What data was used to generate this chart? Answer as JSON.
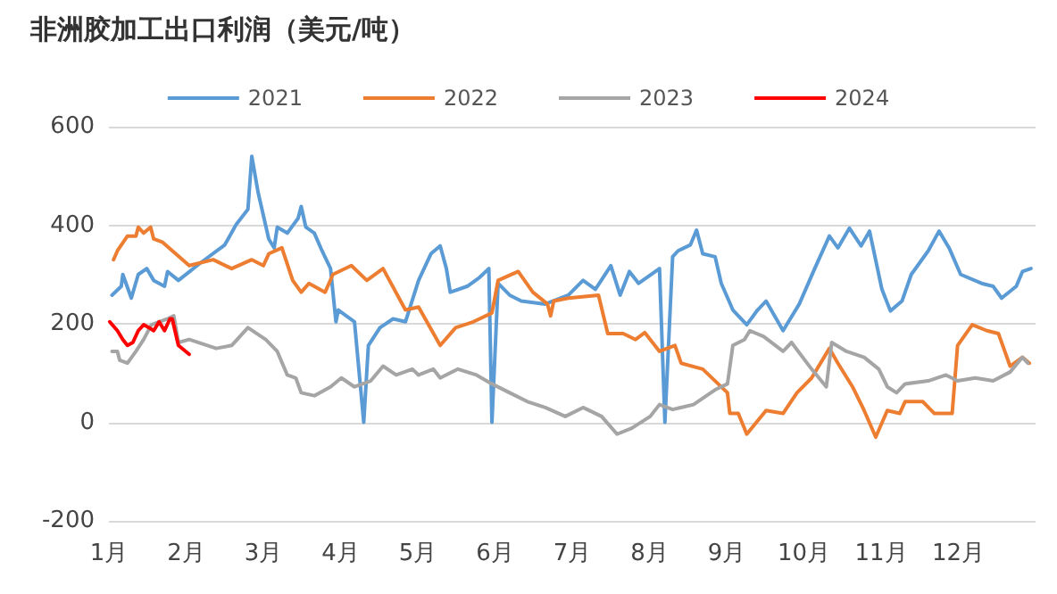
{
  "chart_data": {
    "type": "line",
    "title": "非洲胶加工出口利润（美元/吨）",
    "xlim": [
      1,
      13
    ],
    "xticks": [
      {
        "value": 1,
        "label": "1月"
      },
      {
        "value": 2,
        "label": "2月"
      },
      {
        "value": 3,
        "label": "3月"
      },
      {
        "value": 4,
        "label": "4月"
      },
      {
        "value": 5,
        "label": "5月"
      },
      {
        "value": 6,
        "label": "6月"
      },
      {
        "value": 7,
        "label": "7月"
      },
      {
        "value": 8,
        "label": "8月"
      },
      {
        "value": 9,
        "label": "9月"
      },
      {
        "value": 10,
        "label": "10月"
      },
      {
        "value": 11,
        "label": "11月"
      },
      {
        "value": 12,
        "label": "12月"
      }
    ],
    "ylim": [
      -200,
      600
    ],
    "yticks": [
      -200,
      0,
      200,
      400,
      600
    ],
    "grid": "y",
    "legend": "top",
    "marker": "none",
    "line_style": "solid",
    "series": [
      {
        "name": "2021",
        "color": "#5b9bd5",
        "x": [
          1.04,
          1.16,
          1.18,
          1.29,
          1.38,
          1.49,
          1.58,
          1.72,
          1.76,
          1.9,
          2.19,
          2.5,
          2.65,
          2.8,
          2.85,
          2.93,
          3.07,
          3.14,
          3.18,
          3.31,
          3.45,
          3.49,
          3.55,
          3.66,
          3.76,
          3.87,
          3.94,
          3.97,
          4.18,
          4.3,
          4.36,
          4.51,
          4.68,
          4.84,
          5.01,
          5.17,
          5.29,
          5.37,
          5.42,
          5.64,
          5.8,
          5.92,
          5.96,
          6.04,
          6.19,
          6.34,
          6.65,
          6.95,
          7.14,
          7.3,
          7.5,
          7.62,
          7.74,
          7.86,
          8.13,
          8.2,
          8.3,
          8.37,
          8.53,
          8.61,
          8.69,
          8.85,
          8.93,
          9.08,
          9.26,
          9.4,
          9.51,
          9.73,
          9.94,
          10.14,
          10.33,
          10.44,
          10.59,
          10.74,
          10.85,
          11.01,
          11.12,
          11.27,
          11.39,
          11.61,
          11.75,
          11.88,
          12.03,
          12.3,
          12.45,
          12.56,
          12.75,
          12.83,
          12.94
        ],
        "values": [
          258,
          276,
          300,
          252,
          300,
          312,
          288,
          276,
          306,
          288,
          324,
          360,
          402,
          432,
          540,
          468,
          372,
          354,
          396,
          384,
          414,
          438,
          396,
          384,
          348,
          312,
          204,
          228,
          204,
          0,
          156,
          192,
          210,
          204,
          288,
          342,
          358,
          312,
          264,
          276,
          294,
          312,
          0,
          282,
          258,
          246,
          240,
          258,
          288,
          270,
          318,
          258,
          306,
          282,
          312,
          0,
          336,
          348,
          360,
          390,
          342,
          336,
          282,
          228,
          198,
          228,
          246,
          186,
          240,
          312,
          378,
          354,
          394,
          358,
          388,
          270,
          226,
          246,
          300,
          348,
          388,
          354,
          300,
          282,
          276,
          252,
          276,
          306,
          312
        ]
      },
      {
        "name": "2022",
        "color": "#ed7d31",
        "x": [
          1.06,
          1.11,
          1.24,
          1.35,
          1.38,
          1.45,
          1.54,
          1.58,
          1.69,
          2.04,
          2.35,
          2.59,
          2.85,
          3.0,
          3.07,
          3.24,
          3.38,
          3.49,
          3.59,
          3.8,
          3.9,
          4.14,
          4.34,
          4.55,
          4.84,
          5.01,
          5.29,
          5.49,
          5.72,
          5.96,
          6.04,
          6.3,
          6.49,
          6.68,
          6.72,
          6.76,
          6.95,
          7.34,
          7.46,
          7.66,
          7.82,
          7.94,
          8.13,
          8.33,
          8.41,
          8.69,
          8.85,
          9.01,
          9.04,
          9.15,
          9.26,
          9.51,
          9.73,
          9.91,
          10.1,
          10.33,
          10.44,
          10.63,
          10.78,
          10.93,
          11.08,
          11.24,
          11.31,
          11.54,
          11.69,
          11.92,
          11.99,
          12.18,
          12.37,
          12.52,
          12.67,
          12.83,
          12.92
        ],
        "values": [
          330,
          348,
          378,
          378,
          396,
          384,
          396,
          372,
          366,
          318,
          330,
          312,
          330,
          318,
          342,
          354,
          288,
          264,
          282,
          264,
          300,
          318,
          288,
          312,
          228,
          234,
          156,
          192,
          204,
          222,
          288,
          306,
          264,
          240,
          216,
          246,
          252,
          258,
          180,
          180,
          168,
          182,
          144,
          156,
          120,
          108,
          84,
          60,
          18,
          18,
          -24,
          24,
          18,
          60,
          90,
          150,
          120,
          72,
          24,
          -30,
          24,
          18,
          42,
          42,
          18,
          18,
          156,
          198,
          186,
          180,
          114,
          132,
          120
        ]
      },
      {
        "name": "2023",
        "color": "#a5a5a5",
        "x": [
          1.04,
          1.11,
          1.14,
          1.24,
          1.35,
          1.45,
          1.55,
          1.76,
          1.84,
          1.9,
          2.04,
          2.39,
          2.59,
          2.8,
          3.03,
          3.18,
          3.31,
          3.42,
          3.49,
          3.66,
          3.87,
          4.01,
          4.18,
          4.39,
          4.55,
          4.72,
          4.93,
          5.01,
          5.2,
          5.29,
          5.52,
          5.76,
          5.96,
          6.19,
          6.42,
          6.65,
          6.91,
          7.14,
          7.38,
          7.58,
          7.77,
          8.01,
          8.13,
          8.3,
          8.57,
          8.85,
          9.01,
          9.08,
          9.23,
          9.3,
          9.48,
          9.73,
          9.84,
          10.1,
          10.29,
          10.36,
          10.55,
          10.78,
          10.97,
          11.08,
          11.2,
          11.31,
          11.61,
          11.84,
          11.99,
          12.22,
          12.45,
          12.67,
          12.83,
          12.9
        ],
        "values": [
          144,
          144,
          126,
          120,
          144,
          168,
          198,
          210,
          216,
          162,
          168,
          150,
          156,
          192,
          168,
          144,
          96,
          90,
          60,
          54,
          72,
          90,
          72,
          84,
          114,
          96,
          108,
          96,
          108,
          90,
          108,
          96,
          78,
          60,
          42,
          30,
          12,
          30,
          12,
          -24,
          -12,
          12,
          36,
          26,
          36,
          66,
          78,
          156,
          168,
          186,
          174,
          144,
          162,
          108,
          72,
          162,
          144,
          132,
          108,
          72,
          60,
          78,
          84,
          96,
          84,
          90,
          84,
          102,
          132,
          120
        ]
      },
      {
        "name": "2024",
        "color": "#ff0000",
        "x": [
          1.01,
          1.11,
          1.18,
          1.24,
          1.31,
          1.38,
          1.45,
          1.52,
          1.58,
          1.65,
          1.72,
          1.79,
          1.82,
          1.9,
          2.04
        ],
        "values": [
          204,
          186,
          168,
          156,
          162,
          186,
          198,
          192,
          186,
          204,
          186,
          210,
          210,
          156,
          138
        ]
      }
    ]
  }
}
